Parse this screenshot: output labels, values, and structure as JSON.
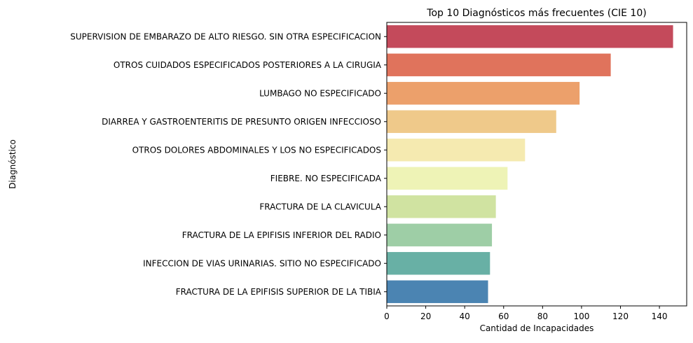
{
  "chart_data": {
    "type": "bar",
    "orientation": "horizontal",
    "title": "Top 10 Diagnósticos más frecuentes (CIE 10)",
    "xlabel": "Cantidad de Incapacidades",
    "ylabel": "Diagnóstico",
    "xlim": [
      0,
      154
    ],
    "xticks": [
      0,
      20,
      40,
      60,
      80,
      100,
      120,
      140
    ],
    "grid": false,
    "categories": [
      "SUPERVISION DE EMBARAZO DE ALTO RIESGO. SIN OTRA ESPECIFICACION",
      "OTROS CUIDADOS ESPECIFICADOS POSTERIORES A LA CIRUGIA",
      "LUMBAGO NO ESPECIFICADO",
      "DIARREA Y GASTROENTERITIS DE PRESUNTO ORIGEN INFECCIOSO",
      "OTROS DOLORES ABDOMINALES Y LOS NO ESPECIFICADOS",
      "FIEBRE. NO ESPECIFICADA",
      "FRACTURA DE LA CLAVICULA",
      "FRACTURA DE LA EPIFISIS INFERIOR DEL RADIO",
      "INFECCION DE VIAS URINARIAS. SITIO NO ESPECIFICADO",
      "FRACTURA DE LA EPIFISIS SUPERIOR DE LA TIBIA"
    ],
    "values": [
      147,
      115,
      99,
      87,
      71,
      62,
      56,
      54,
      53,
      52
    ],
    "colors": [
      "#c44a5b",
      "#e0735c",
      "#eca06b",
      "#efc98a",
      "#f5eab0",
      "#eef3b6",
      "#d0e3a1",
      "#9ecea6",
      "#68b0a5",
      "#4b84b2"
    ]
  }
}
